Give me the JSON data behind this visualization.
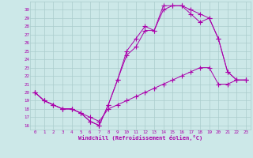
{
  "xlabel": "Windchill (Refroidissement éolien,°C)",
  "bg_color": "#cce8e8",
  "line_color": "#aa00aa",
  "grid_color": "#aacccc",
  "xmin": -0.5,
  "xmax": 23.5,
  "ymin": 15.5,
  "ymax": 31.0,
  "line1_x": [
    0,
    1,
    2,
    3,
    4,
    5,
    6,
    7,
    8,
    9,
    10,
    11,
    12,
    13,
    14,
    15,
    16,
    17,
    18,
    19,
    20,
    21,
    22,
    23
  ],
  "line1_y": [
    20,
    19,
    18.5,
    18,
    18,
    17.5,
    16.5,
    16,
    18.5,
    21.5,
    24.5,
    25.5,
    27.5,
    27.5,
    30.5,
    30.5,
    30.5,
    30,
    29.5,
    29,
    26.5,
    22.5,
    21.5,
    21.5
  ],
  "line2_x": [
    0,
    1,
    2,
    3,
    4,
    5,
    6,
    7,
    8,
    9,
    10,
    11,
    12,
    13,
    14,
    15,
    16,
    17,
    18,
    19,
    20,
    21,
    22,
    23
  ],
  "line2_y": [
    20,
    19,
    18.5,
    18,
    18,
    17.5,
    16.5,
    16,
    18.5,
    21.5,
    25,
    26.5,
    28,
    27.5,
    30,
    30.5,
    30.5,
    29.5,
    28.5,
    29,
    26.5,
    22.5,
    21.5,
    21.5
  ],
  "line3_x": [
    0,
    1,
    2,
    3,
    4,
    5,
    6,
    7,
    8,
    9,
    10,
    11,
    12,
    13,
    14,
    15,
    16,
    17,
    18,
    19,
    20,
    21,
    22,
    23
  ],
  "line3_y": [
    20,
    19,
    18.5,
    18,
    18,
    17.5,
    17,
    16.5,
    18,
    18.5,
    19,
    19.5,
    20,
    20.5,
    21,
    21.5,
    22,
    22.5,
    23,
    23,
    21,
    21,
    21.5,
    21.5
  ],
  "xticks": [
    0,
    1,
    2,
    3,
    4,
    5,
    6,
    7,
    8,
    9,
    10,
    11,
    12,
    13,
    14,
    15,
    16,
    17,
    18,
    19,
    20,
    21,
    22,
    23
  ],
  "yticks": [
    16,
    17,
    18,
    19,
    20,
    21,
    22,
    23,
    24,
    25,
    26,
    27,
    28,
    29,
    30
  ]
}
